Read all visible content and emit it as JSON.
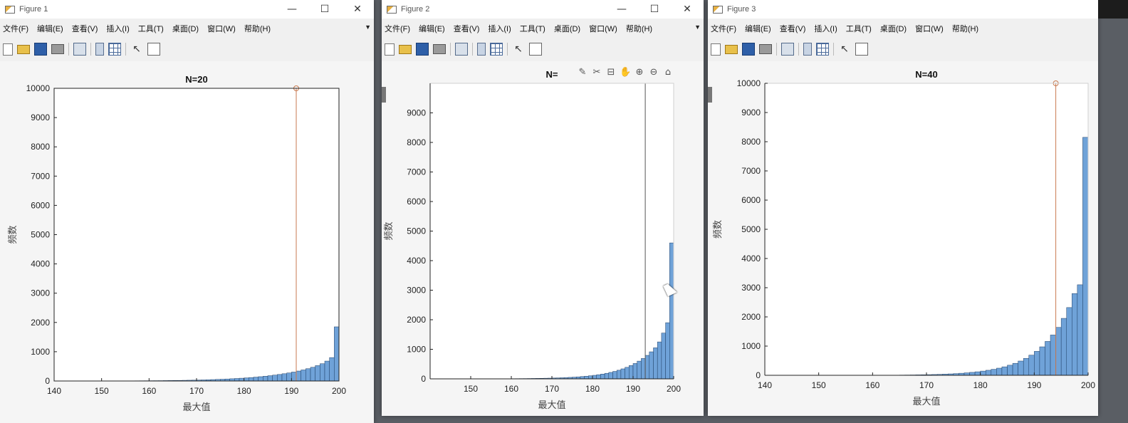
{
  "windows": [
    {
      "title": "Figure 1",
      "controls": {
        "minimize": "—",
        "maximize": "☐",
        "close": "✕"
      },
      "menu": [
        "文件(F)",
        "编辑(E)",
        "查看(V)",
        "插入(I)",
        "工具(T)",
        "桌面(D)",
        "窗口(W)",
        "帮助(H)"
      ],
      "axes_tools": []
    },
    {
      "title": "Figure 2",
      "controls": {
        "minimize": "—",
        "maximize": "☐",
        "close": "✕"
      },
      "menu": [
        "文件(F)",
        "编辑(E)",
        "查看(V)",
        "插入(I)",
        "工具(T)",
        "桌面(D)",
        "窗口(W)",
        "帮助(H)"
      ],
      "axes_tools": [
        "✎",
        "✂",
        "⊟",
        "✋",
        "⊕",
        "⊖",
        "⌂"
      ]
    },
    {
      "title": "Figure 3",
      "controls": {
        "minimize": "—",
        "maximize": "☐",
        "close": "✕"
      },
      "menu": [
        "文件(F)",
        "编辑(E)",
        "查看(V)",
        "插入(I)",
        "工具(T)",
        "桌面(D)",
        "窗口(W)",
        "帮助(H)"
      ],
      "axes_tools": []
    }
  ],
  "toolbar_icons": [
    "new-icon",
    "open-icon",
    "save-icon",
    "print-icon",
    "figure-icon",
    "pane-icon",
    "grid-icon",
    "pointer-icon",
    "inspector-icon"
  ],
  "colors": {
    "bar_fill": "#6fa2d8",
    "bar_edge": "#1f3f66",
    "marker_line": "#c87a50"
  },
  "chart_data": [
    {
      "type": "bar",
      "title": "N=20",
      "xlabel": "最大值",
      "ylabel": "频数",
      "xlim": [
        140,
        200
      ],
      "ylim": [
        0,
        10000
      ],
      "xticks": [
        140,
        150,
        160,
        170,
        180,
        190,
        200
      ],
      "yticks": [
        0,
        1000,
        2000,
        3000,
        4000,
        5000,
        6000,
        7000,
        8000,
        9000,
        10000
      ],
      "bin_start": 140,
      "bin_width": 1,
      "values": [
        0,
        0,
        0,
        0,
        0,
        0,
        0,
        1,
        1,
        1,
        2,
        2,
        3,
        3,
        4,
        5,
        6,
        7,
        8,
        9,
        10,
        11,
        12,
        14,
        16,
        18,
        20,
        23,
        26,
        29,
        33,
        37,
        42,
        48,
        54,
        60,
        68,
        76,
        85,
        95,
        106,
        118,
        132,
        147,
        163,
        181,
        201,
        223,
        248,
        275,
        305,
        340,
        378,
        420,
        468,
        525,
        590,
        680,
        800,
        1850
      ],
      "marker_x": 191,
      "marker_top_y": 10000
    },
    {
      "type": "bar",
      "title": "N=",
      "xlabel": "最大值",
      "ylabel": "频数",
      "xlim": [
        140,
        200
      ],
      "ylim": [
        0,
        10000
      ],
      "xticks": [
        150,
        160,
        170,
        180,
        190,
        200
      ],
      "yticks": [
        0,
        1000,
        2000,
        3000,
        4000,
        5000,
        6000,
        7000,
        8000,
        9000
      ],
      "bin_start": 140,
      "bin_width": 1,
      "values": [
        0,
        0,
        0,
        0,
        0,
        0,
        0,
        0,
        0,
        0,
        1,
        1,
        1,
        2,
        2,
        3,
        3,
        4,
        5,
        6,
        7,
        8,
        9,
        10,
        12,
        14,
        16,
        18,
        21,
        24,
        28,
        32,
        37,
        43,
        50,
        58,
        67,
        78,
        90,
        104,
        120,
        140,
        162,
        188,
        218,
        252,
        292,
        338,
        390,
        450,
        520,
        600,
        690,
        795,
        915,
        1050,
        1250,
        1550,
        1900,
        4600
      ],
      "marker_x": 193
    },
    {
      "type": "bar",
      "title": "N=40",
      "xlabel": "最大值",
      "ylabel": "频数",
      "xlim": [
        140,
        200
      ],
      "ylim": [
        0,
        10000
      ],
      "xticks": [
        140,
        150,
        160,
        170,
        180,
        190,
        200
      ],
      "yticks": [
        0,
        1000,
        2000,
        3000,
        4000,
        5000,
        6000,
        7000,
        8000,
        9000,
        10000
      ],
      "bin_start": 140,
      "bin_width": 1,
      "values": [
        0,
        0,
        0,
        0,
        0,
        0,
        0,
        0,
        0,
        0,
        0,
        0,
        0,
        0,
        0,
        0,
        0,
        0,
        1,
        2,
        2,
        3,
        4,
        5,
        6,
        8,
        10,
        12,
        15,
        18,
        22,
        27,
        33,
        40,
        48,
        58,
        70,
        84,
        100,
        120,
        144,
        172,
        205,
        244,
        290,
        345,
        410,
        488,
        580,
        690,
        820,
        975,
        1160,
        1380,
        1640,
        1950,
        2320,
        2800,
        3100,
        8150
      ],
      "marker_x": 194,
      "marker_top_y": 10000
    }
  ]
}
